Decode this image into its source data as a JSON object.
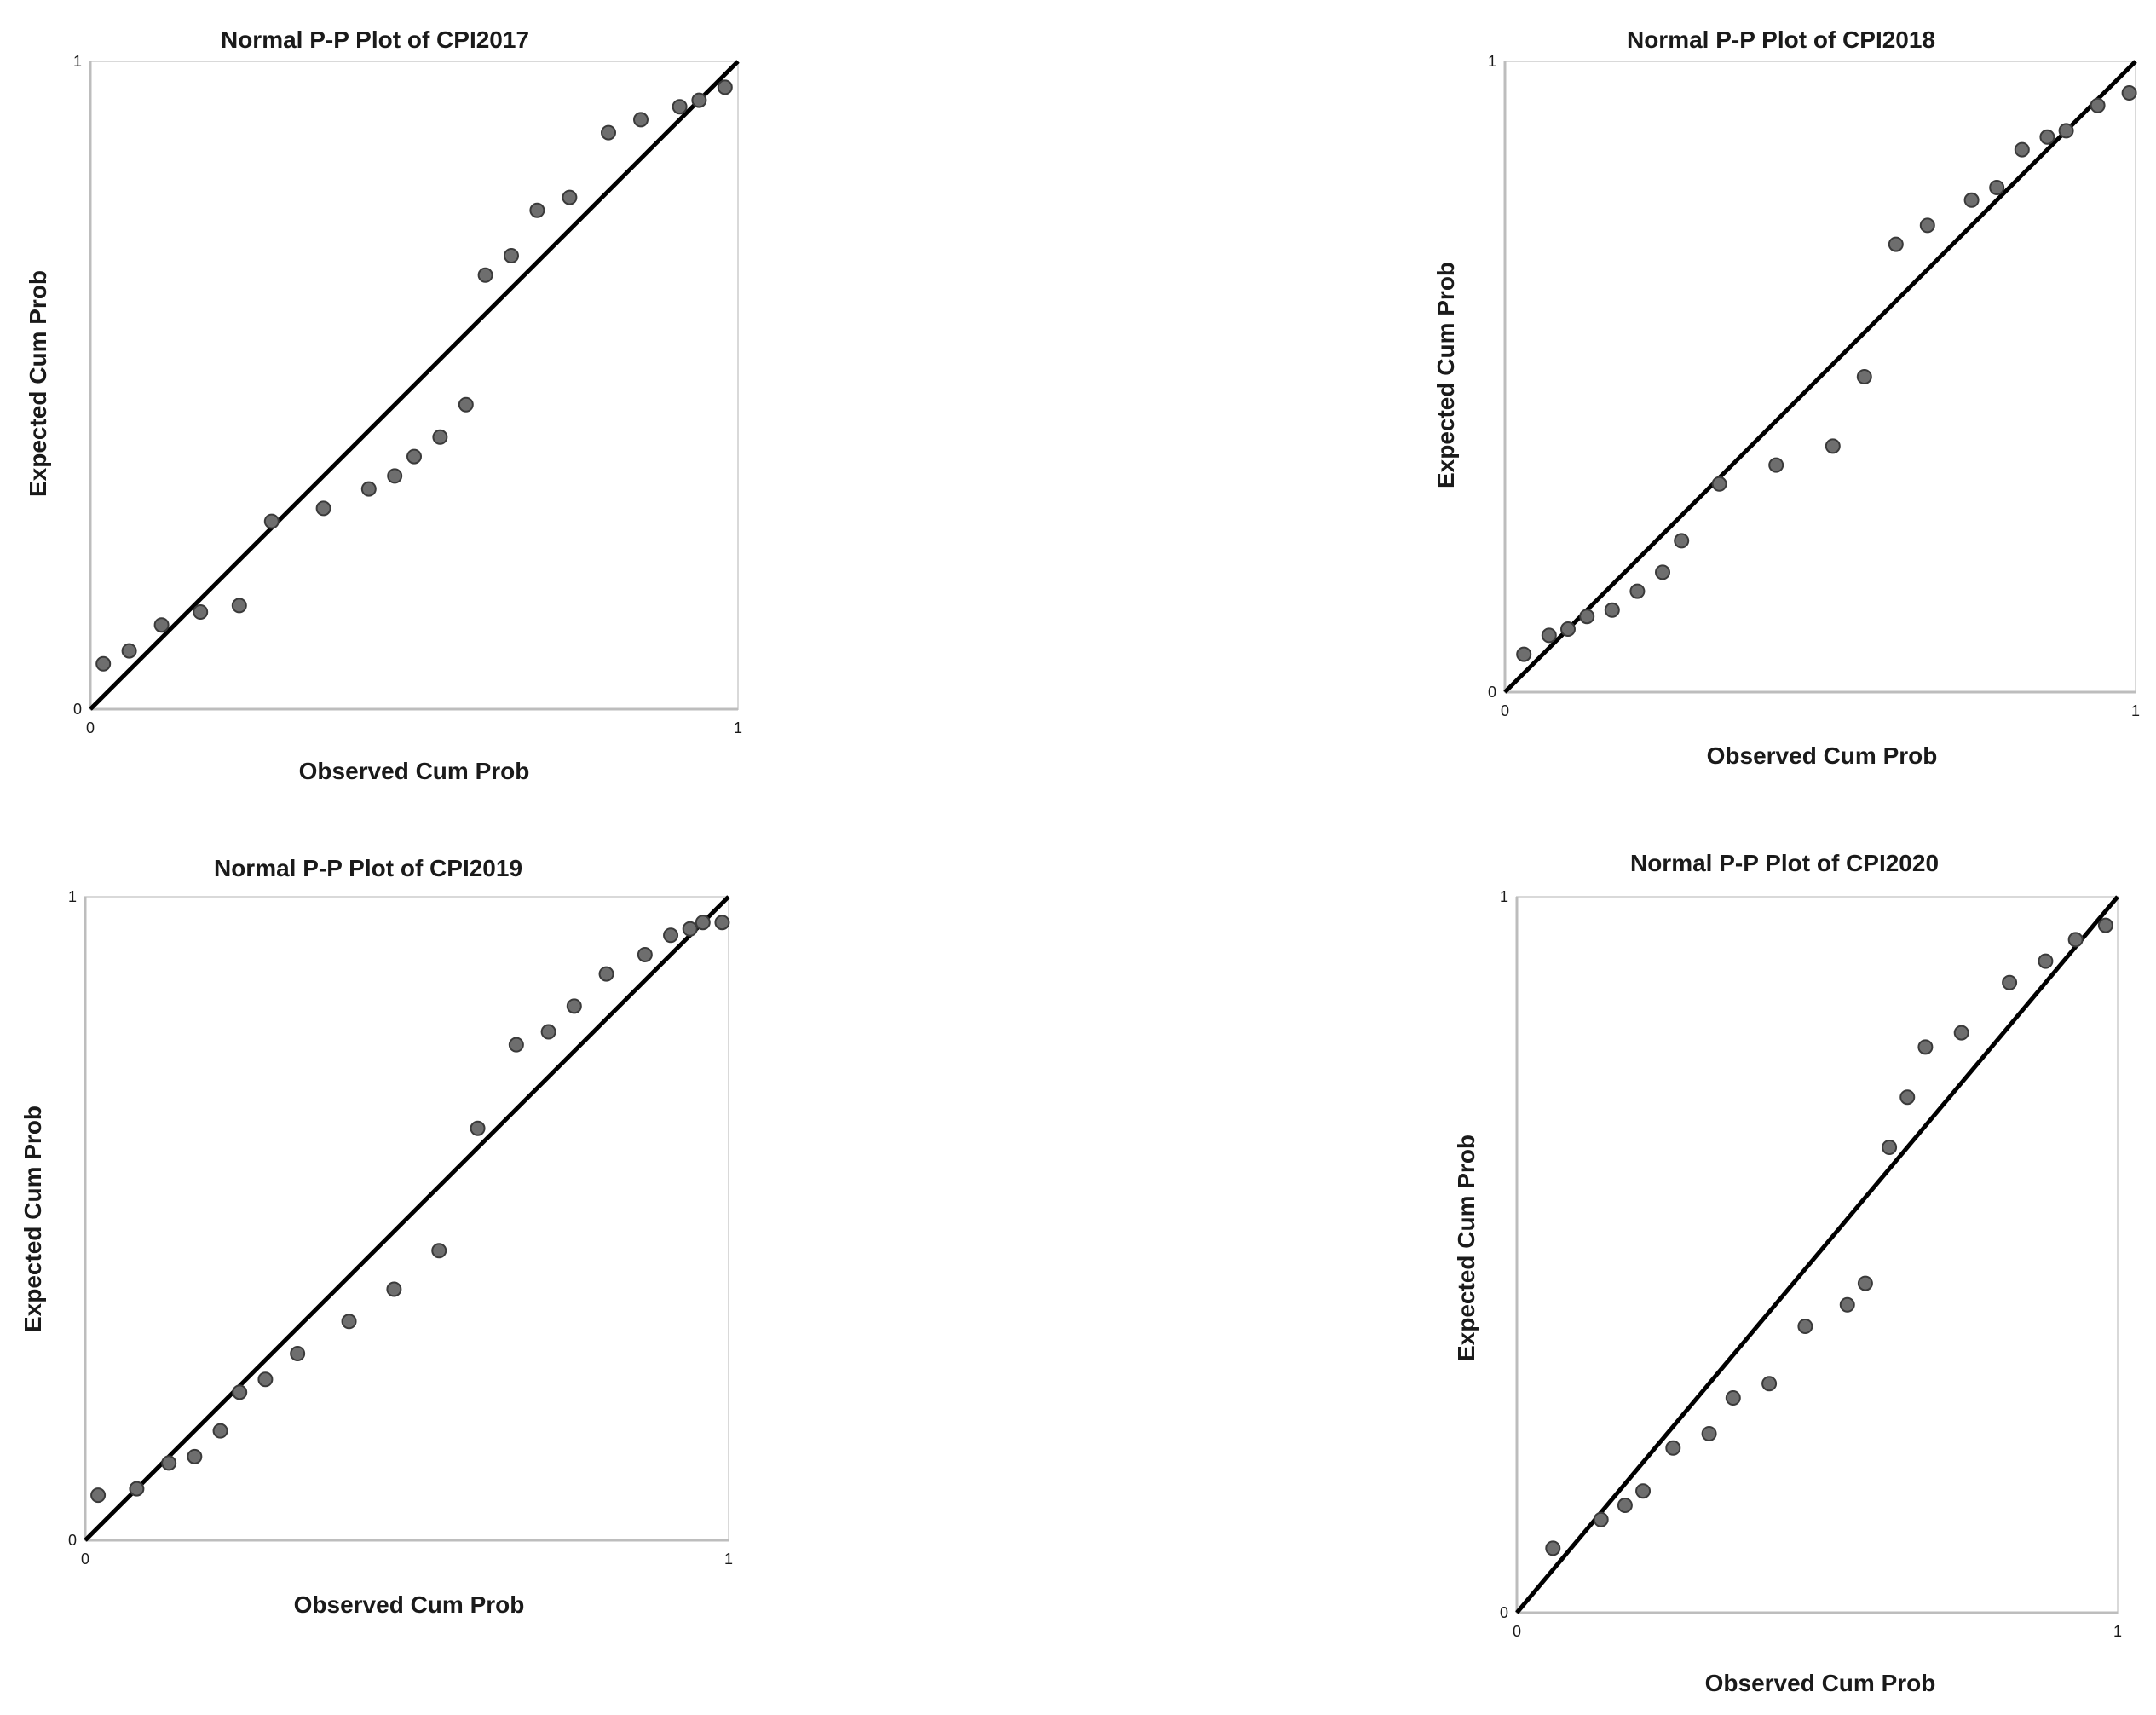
{
  "chart_data": [
    {
      "type": "scatter",
      "title": "Normal P-P Plot of CPI2017",
      "xlabel": "Observed Cum Prob",
      "ylabel": "Expected Cum Prob",
      "xlim": [
        0,
        1
      ],
      "ylim": [
        0,
        1
      ],
      "x_ticks": [
        "0",
        "1"
      ],
      "y_ticks": [
        "0",
        "1"
      ],
      "reference_line": "y = x",
      "grid": false,
      "series": [
        {
          "x": [
            0.02,
            0.06,
            0.11,
            0.17,
            0.23,
            0.28,
            0.36,
            0.43,
            0.47,
            0.5,
            0.54,
            0.58,
            0.61,
            0.65,
            0.69,
            0.74,
            0.8,
            0.85,
            0.91,
            0.94,
            0.98
          ],
          "y": [
            0.07,
            0.09,
            0.13,
            0.15,
            0.16,
            0.29,
            0.31,
            0.34,
            0.36,
            0.39,
            0.42,
            0.47,
            0.67,
            0.7,
            0.77,
            0.79,
            0.89,
            0.91,
            0.93,
            0.94,
            0.96
          ]
        }
      ]
    },
    {
      "type": "scatter",
      "title": "Normal P-P Plot of CPI2018",
      "xlabel": "Observed Cum Prob",
      "ylabel": "Expected Cum Prob",
      "xlim": [
        0,
        1
      ],
      "ylim": [
        0,
        1
      ],
      "x_ticks": [
        "0",
        "1"
      ],
      "y_ticks": [
        "0",
        "1"
      ],
      "reference_line": "y = x",
      "grid": false,
      "series": [
        {
          "x": [
            0.03,
            0.07,
            0.1,
            0.13,
            0.17,
            0.21,
            0.25,
            0.28,
            0.34,
            0.43,
            0.52,
            0.57,
            0.62,
            0.67,
            0.74,
            0.78,
            0.82,
            0.86,
            0.89,
            0.94,
            0.99
          ],
          "y": [
            0.06,
            0.09,
            0.1,
            0.12,
            0.13,
            0.16,
            0.19,
            0.24,
            0.33,
            0.36,
            0.39,
            0.5,
            0.71,
            0.74,
            0.78,
            0.8,
            0.86,
            0.88,
            0.89,
            0.93,
            0.95
          ]
        }
      ]
    },
    {
      "type": "scatter",
      "title": "Normal P-P Plot of CPI2019",
      "xlabel": "Observed Cum Prob",
      "ylabel": "Expected Cum Prob",
      "xlim": [
        0,
        1
      ],
      "ylim": [
        0,
        1
      ],
      "x_ticks": [
        "0",
        "1"
      ],
      "y_ticks": [
        "0",
        "1"
      ],
      "reference_line": "y = x",
      "grid": false,
      "series": [
        {
          "x": [
            0.02,
            0.08,
            0.13,
            0.17,
            0.21,
            0.24,
            0.28,
            0.33,
            0.41,
            0.48,
            0.55,
            0.61,
            0.67,
            0.72,
            0.76,
            0.81,
            0.87,
            0.91,
            0.94,
            0.96,
            0.99
          ],
          "y": [
            0.07,
            0.08,
            0.12,
            0.13,
            0.17,
            0.23,
            0.25,
            0.29,
            0.34,
            0.39,
            0.45,
            0.64,
            0.77,
            0.79,
            0.83,
            0.88,
            0.91,
            0.94,
            0.95,
            0.96,
            0.96
          ]
        }
      ]
    },
    {
      "type": "scatter",
      "title": "Normal P-P Plot of CPI2020",
      "xlabel": "Observed Cum Prob",
      "ylabel": "Expected Cum Prob",
      "xlim": [
        0,
        1
      ],
      "ylim": [
        0,
        1
      ],
      "x_ticks": [
        "0",
        "1"
      ],
      "y_ticks": [
        "0",
        "1"
      ],
      "reference_line": "y = x",
      "grid": false,
      "series": [
        {
          "x": [
            0.06,
            0.14,
            0.18,
            0.21,
            0.26,
            0.32,
            0.36,
            0.42,
            0.48,
            0.55,
            0.58,
            0.62,
            0.65,
            0.68,
            0.74,
            0.82,
            0.88,
            0.93,
            0.98
          ],
          "y": [
            0.09,
            0.13,
            0.15,
            0.17,
            0.23,
            0.25,
            0.3,
            0.32,
            0.4,
            0.43,
            0.46,
            0.65,
            0.72,
            0.79,
            0.81,
            0.88,
            0.91,
            0.94,
            0.96
          ]
        }
      ]
    }
  ]
}
